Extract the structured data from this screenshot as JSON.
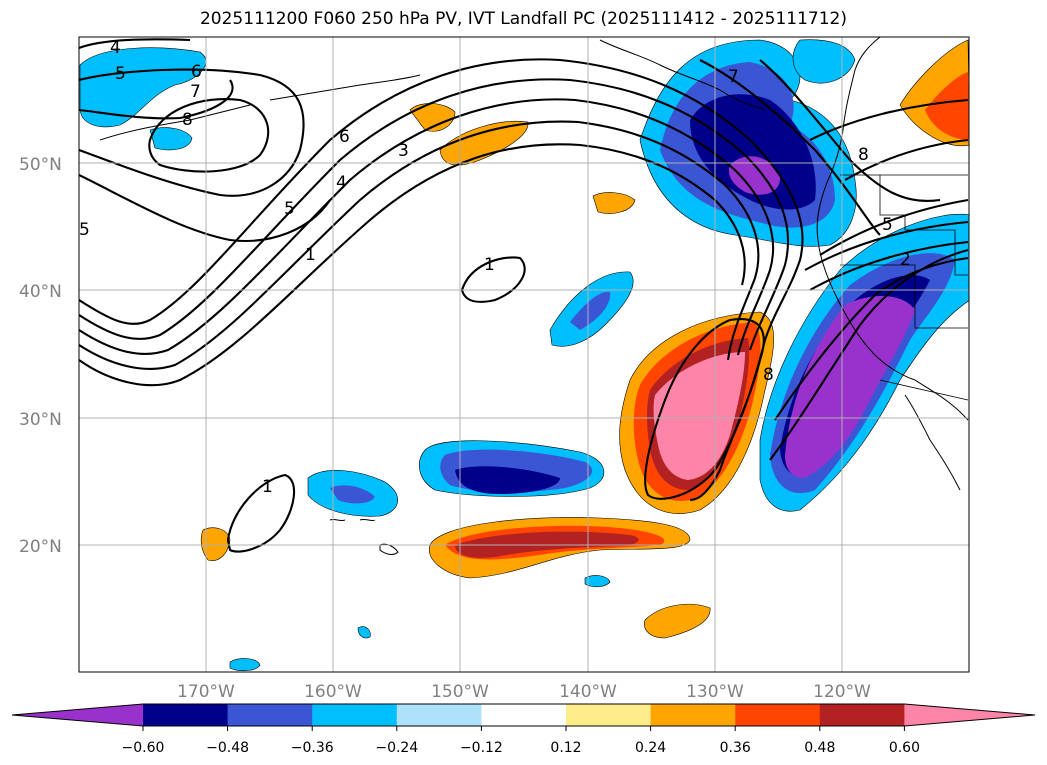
{
  "title": "2025111200 F060 250 hPa PV, IVT Landfall PC (2025111412 - 2025111712)",
  "map": {
    "lon_range": [
      -180,
      -110
    ],
    "lat_range": [
      10,
      60
    ],
    "lat_labels": [
      "50°N",
      "40°N",
      "30°N",
      "20°N"
    ],
    "lon_labels": [
      "170°W",
      "160°W",
      "150°W",
      "140°W",
      "130°W",
      "120°W"
    ],
    "grid": true,
    "contour_labels": [
      "4",
      "5",
      "6",
      "7",
      "8",
      "6",
      "3",
      "4",
      "5",
      "1",
      "1",
      "1",
      "7",
      "8",
      "5",
      "2",
      "8",
      "5"
    ]
  },
  "colorbar": {
    "ticks": [
      "−0.60",
      "−0.48",
      "−0.36",
      "−0.24",
      "−0.12",
      "0.12",
      "0.24",
      "0.36",
      "0.48",
      "0.60"
    ],
    "colors": [
      "#9932CC",
      "#00008B",
      "#3A56D4",
      "#00BFFF",
      "#AEE2FA",
      "#FFFFFF",
      "#FFEC8B",
      "#FFA500",
      "#FF4500",
      "#B22222",
      "#FF85A8"
    ]
  }
}
